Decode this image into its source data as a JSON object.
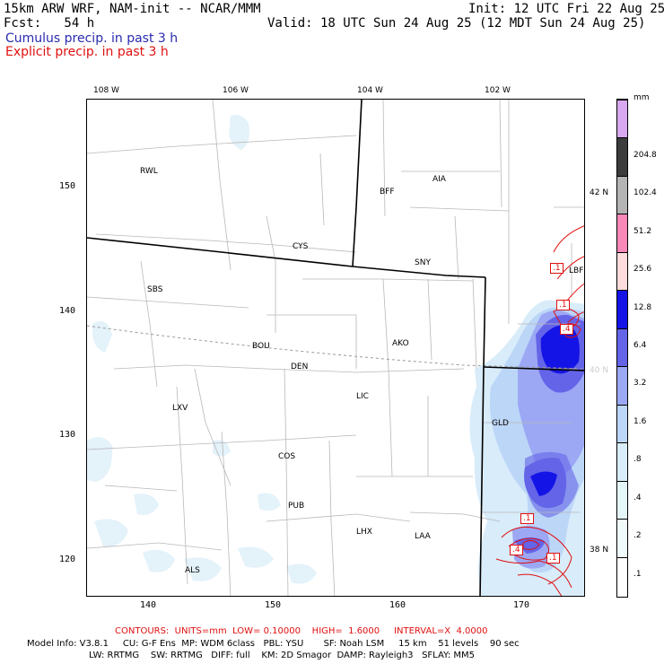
{
  "header": {
    "model_line": "15km ARW WRF, NAM-init -- NCAR/MMM",
    "init_line": "Init: 12 UTC Fri 22 Aug 25",
    "fcst_line": "Fcst:   54 h",
    "valid_line": "Valid: 18 UTC Sun 24 Aug 25 (12 MDT Sun 24 Aug 25)",
    "field_cumulus": "Cumulus precip. in past 3 h",
    "field_explicit": "Explicit precip. in past 3 h"
  },
  "colors": {
    "cumulus_text": "#2a2ab0",
    "explicit_text": "#e01010",
    "contour": "#e01010"
  },
  "axes": {
    "lon_labels": [
      "108 W",
      "106 W",
      "104 W",
      "102 W"
    ],
    "lat_labels": [
      "42 N",
      "40 N",
      "38 N"
    ],
    "y_grid": [
      "150",
      "140",
      "130",
      "120"
    ],
    "x_grid": [
      "140",
      "150",
      "160",
      "170"
    ]
  },
  "cities": [
    {
      "name": "RWL"
    },
    {
      "name": "BFF"
    },
    {
      "name": "AIA"
    },
    {
      "name": "CYS"
    },
    {
      "name": "SNY"
    },
    {
      "name": "LBF"
    },
    {
      "name": "SBS"
    },
    {
      "name": "BOU"
    },
    {
      "name": "DEN"
    },
    {
      "name": "AKO"
    },
    {
      "name": "LXV"
    },
    {
      "name": "LIC"
    },
    {
      "name": "GLD"
    },
    {
      "name": "COS"
    },
    {
      "name": "PUB"
    },
    {
      "name": "LHX"
    },
    {
      "name": "LAA"
    },
    {
      "name": "ALS"
    }
  ],
  "contour_labels": [
    ".1",
    ".1",
    ".4",
    ".1",
    ".4",
    ".1"
  ],
  "colorbar": {
    "units": "mm",
    "levels": [
      {
        "label": ".1",
        "color": "#ffffff"
      },
      {
        "label": ".2",
        "color": "#f0fafa"
      },
      {
        "label": ".4",
        "color": "#e4f6f8"
      },
      {
        "label": ".8",
        "color": "#d8ecfa"
      },
      {
        "label": "1.6",
        "color": "#bcd6f8"
      },
      {
        "label": "3.2",
        "color": "#9ca8f4"
      },
      {
        "label": "6.4",
        "color": "#6464e8"
      },
      {
        "label": "12.8",
        "color": "#1414e6"
      },
      {
        "label": "25.6",
        "color": "#fcdcdc"
      },
      {
        "label": "51.2",
        "color": "#f888b8"
      },
      {
        "label": "102.4",
        "color": "#b4b4b4"
      },
      {
        "label": "204.8",
        "color": "#3c3c3c"
      },
      {
        "label": "",
        "color": "#d8a8f0"
      }
    ]
  },
  "footer": {
    "contours": "CONTOURS:  UNITS=mm  LOW= 0.10000    HIGH=  1.6000     INTERVAL=X  4.0000",
    "model_info_1": "Model Info: V3.8.1     CU: G-F Ens  MP: WDM 6class   PBL: YSU       SF: Noah LSM     15 km    51 levels    90 sec",
    "model_info_2": "LW: RRTMG    SW: RRTMG   DIFF: full    KM: 2D Smagor  DAMP: Rayleigh3   SFLAY: MM5"
  }
}
